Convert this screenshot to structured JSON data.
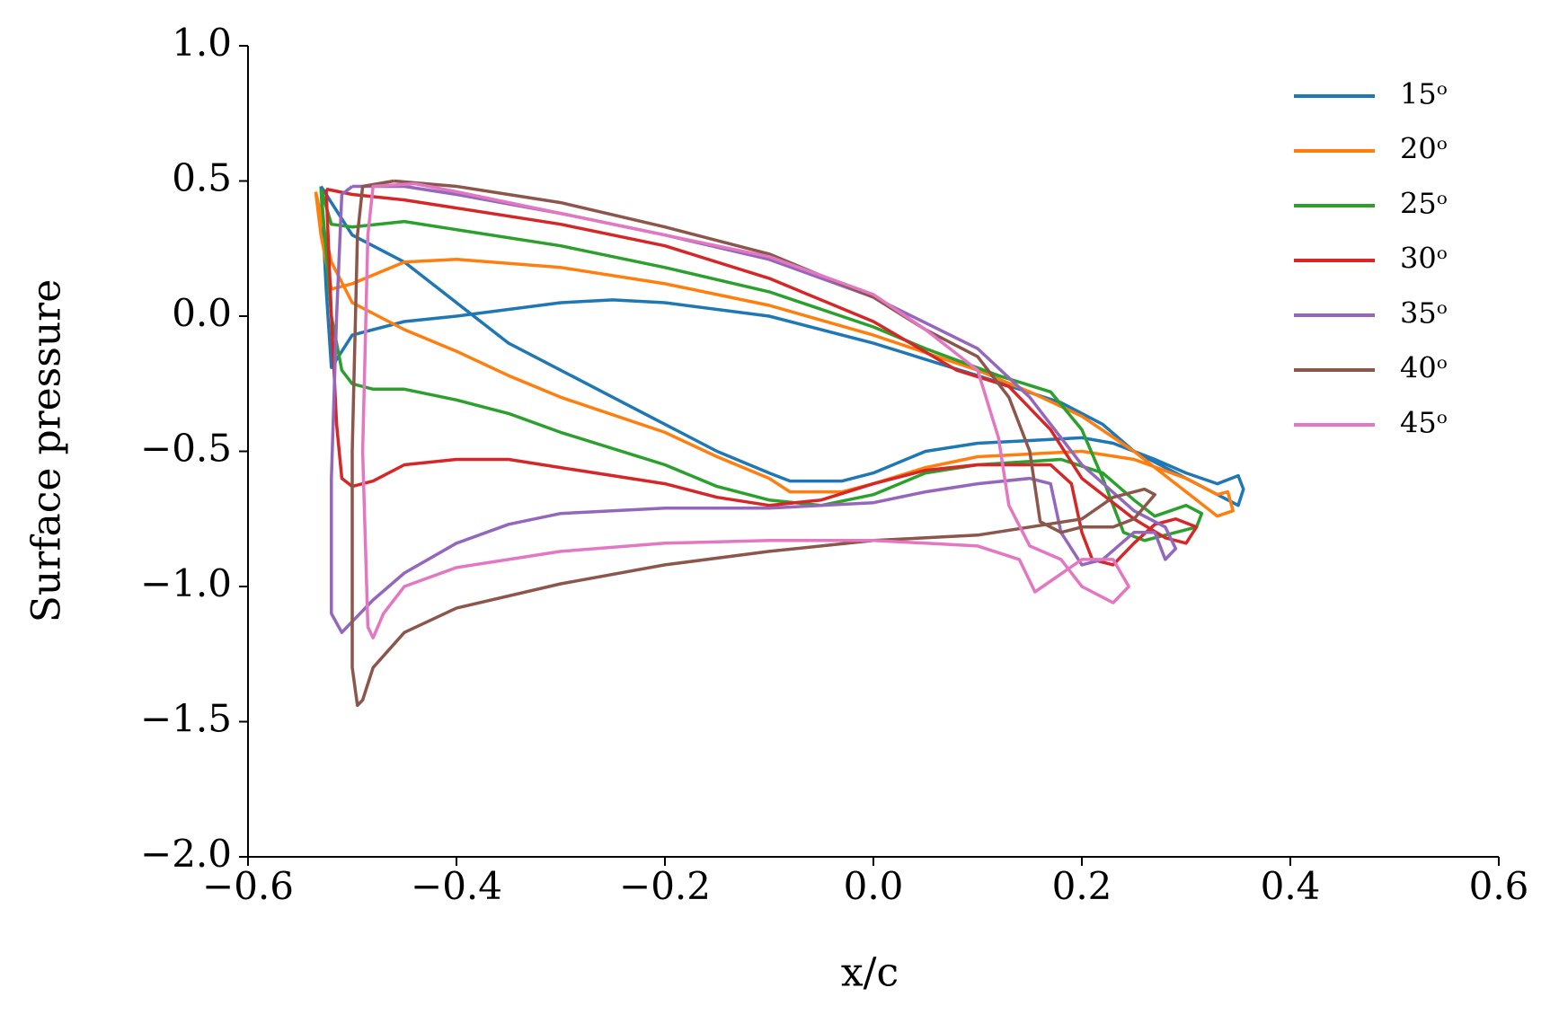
{
  "chart_data": {
    "type": "line",
    "xlabel": "x/c",
    "ylabel": "Surface pressure",
    "xlim": [
      -0.6,
      0.6
    ],
    "ylim": [
      -2.0,
      1.0
    ],
    "xticks": [
      {
        "value": -0.6,
        "label": "−0.6"
      },
      {
        "value": -0.4,
        "label": "−0.4"
      },
      {
        "value": -0.2,
        "label": "−0.2"
      },
      {
        "value": 0.0,
        "label": "0.0"
      },
      0.2,
      0.4,
      0.6
    ],
    "yticks": [
      {
        "value": -2.0,
        "label": "−2.0"
      },
      {
        "value": -1.5,
        "label": "−1.5"
      },
      {
        "value": -1.0,
        "label": "−1.0"
      },
      {
        "value": -0.5,
        "label": "−0.5"
      },
      {
        "value": 0.0,
        "label": "0.0"
      },
      0.5,
      {
        "value": 1.0,
        "label": "1.0"
      }
    ],
    "legend": "upper right",
    "series": [
      {
        "name": "15ᵒ",
        "color": "#1f77b4",
        "x": [
          -0.53,
          -0.5,
          -0.45,
          -0.4,
          -0.35,
          -0.3,
          -0.25,
          -0.2,
          -0.15,
          -0.1,
          -0.08,
          -0.03,
          0.0,
          0.05,
          0.1,
          0.15,
          0.2,
          0.23,
          0.27,
          0.3,
          0.33,
          0.35,
          0.355,
          0.35,
          0.33,
          0.3,
          0.25,
          0.22,
          0.18,
          0.1,
          0.0,
          -0.1,
          -0.2,
          -0.25,
          -0.3,
          -0.4,
          -0.45,
          -0.5,
          -0.52,
          -0.525,
          -0.53
        ],
        "values": [
          0.48,
          0.3,
          0.2,
          0.05,
          -0.1,
          -0.2,
          -0.3,
          -0.4,
          -0.5,
          -0.58,
          -0.61,
          -0.61,
          -0.58,
          -0.5,
          -0.47,
          -0.46,
          -0.45,
          -0.47,
          -0.53,
          -0.58,
          -0.62,
          -0.59,
          -0.64,
          -0.7,
          -0.66,
          -0.6,
          -0.5,
          -0.4,
          -0.32,
          -0.22,
          -0.1,
          0.0,
          0.05,
          0.06,
          0.05,
          0.0,
          -0.02,
          -0.07,
          -0.19,
          0.1,
          0.48
        ]
      },
      {
        "name": "20ᵒ",
        "color": "#ff7f0e",
        "x": [
          -0.535,
          -0.52,
          -0.5,
          -0.45,
          -0.4,
          -0.35,
          -0.3,
          -0.2,
          -0.15,
          -0.1,
          -0.08,
          -0.03,
          0.0,
          0.05,
          0.1,
          0.2,
          0.25,
          0.3,
          0.33,
          0.34,
          0.345,
          0.33,
          0.3,
          0.25,
          0.2,
          0.15,
          0.1,
          0.0,
          -0.1,
          -0.2,
          -0.3,
          -0.4,
          -0.45,
          -0.5,
          -0.52,
          -0.53,
          -0.535
        ],
        "values": [
          0.46,
          0.2,
          0.05,
          -0.05,
          -0.13,
          -0.22,
          -0.3,
          -0.43,
          -0.52,
          -0.6,
          -0.65,
          -0.65,
          -0.62,
          -0.56,
          -0.52,
          -0.5,
          -0.53,
          -0.6,
          -0.66,
          -0.65,
          -0.72,
          -0.74,
          -0.65,
          -0.5,
          -0.37,
          -0.28,
          -0.2,
          -0.07,
          0.04,
          0.12,
          0.18,
          0.21,
          0.2,
          0.12,
          0.1,
          0.3,
          0.46
        ]
      },
      {
        "name": "25ᵒ",
        "color": "#2ca02c",
        "x": [
          -0.53,
          -0.52,
          -0.51,
          -0.5,
          -0.48,
          -0.45,
          -0.4,
          -0.35,
          -0.3,
          -0.2,
          -0.15,
          -0.1,
          -0.05,
          0.0,
          0.05,
          0.1,
          0.18,
          0.22,
          0.25,
          0.27,
          0.3,
          0.315,
          0.31,
          0.29,
          0.26,
          0.24,
          0.22,
          0.2,
          0.17,
          0.12,
          0.05,
          0.0,
          -0.1,
          -0.2,
          -0.3,
          -0.4,
          -0.45,
          -0.5,
          -0.52,
          -0.53
        ],
        "values": [
          0.47,
          0.0,
          -0.2,
          -0.25,
          -0.27,
          -0.27,
          -0.31,
          -0.36,
          -0.43,
          -0.55,
          -0.63,
          -0.68,
          -0.7,
          -0.66,
          -0.58,
          -0.55,
          -0.53,
          -0.58,
          -0.68,
          -0.74,
          -0.7,
          -0.73,
          -0.78,
          -0.8,
          -0.83,
          -0.8,
          -0.6,
          -0.42,
          -0.28,
          -0.22,
          -0.12,
          -0.04,
          0.09,
          0.18,
          0.26,
          0.32,
          0.35,
          0.33,
          0.34,
          0.47
        ]
      },
      {
        "name": "30ᵒ",
        "color": "#d62728",
        "x": [
          -0.525,
          -0.52,
          -0.515,
          -0.51,
          -0.5,
          -0.48,
          -0.45,
          -0.4,
          -0.35,
          -0.3,
          -0.2,
          -0.15,
          -0.1,
          -0.05,
          0.0,
          0.05,
          0.1,
          0.17,
          0.19,
          0.2,
          0.21,
          0.23,
          0.25,
          0.27,
          0.29,
          0.31,
          0.3,
          0.28,
          0.25,
          0.2,
          0.17,
          0.13,
          0.08,
          0.0,
          -0.1,
          -0.2,
          -0.3,
          -0.4,
          -0.45,
          -0.5,
          -0.525
        ],
        "values": [
          0.47,
          0.0,
          -0.4,
          -0.6,
          -0.63,
          -0.61,
          -0.55,
          -0.53,
          -0.53,
          -0.56,
          -0.62,
          -0.67,
          -0.7,
          -0.68,
          -0.62,
          -0.57,
          -0.55,
          -0.55,
          -0.62,
          -0.8,
          -0.9,
          -0.92,
          -0.84,
          -0.77,
          -0.75,
          -0.78,
          -0.84,
          -0.82,
          -0.75,
          -0.6,
          -0.42,
          -0.26,
          -0.2,
          -0.02,
          0.14,
          0.26,
          0.34,
          0.4,
          0.43,
          0.45,
          0.47
        ]
      },
      {
        "name": "35ᵒ",
        "color": "#9467bd",
        "x": [
          -0.5,
          -0.51,
          -0.515,
          -0.52,
          -0.52,
          -0.51,
          -0.5,
          -0.48,
          -0.45,
          -0.4,
          -0.35,
          -0.3,
          -0.2,
          -0.1,
          0.0,
          0.05,
          0.1,
          0.15,
          0.17,
          0.18,
          0.2,
          0.22,
          0.25,
          0.27,
          0.28,
          0.29,
          0.28,
          0.25,
          0.2,
          0.15,
          0.1,
          0.0,
          -0.1,
          -0.2,
          -0.3,
          -0.4,
          -0.45,
          -0.5
        ],
        "values": [
          0.48,
          0.45,
          0.0,
          -0.6,
          -1.1,
          -1.17,
          -1.13,
          -1.05,
          -0.95,
          -0.84,
          -0.77,
          -0.73,
          -0.71,
          -0.71,
          -0.69,
          -0.65,
          -0.62,
          -0.6,
          -0.62,
          -0.8,
          -0.92,
          -0.9,
          -0.8,
          -0.8,
          -0.9,
          -0.86,
          -0.78,
          -0.72,
          -0.55,
          -0.3,
          -0.12,
          0.07,
          0.21,
          0.3,
          0.38,
          0.45,
          0.48,
          0.48
        ]
      },
      {
        "name": "40ᵒ",
        "color": "#8c564b",
        "x": [
          -0.46,
          -0.49,
          -0.495,
          -0.5,
          -0.5,
          -0.495,
          -0.49,
          -0.48,
          -0.45,
          -0.4,
          -0.3,
          -0.2,
          -0.1,
          0.0,
          0.1,
          0.15,
          0.2,
          0.23,
          0.26,
          0.27,
          0.25,
          0.23,
          0.2,
          0.18,
          0.16,
          0.15,
          0.13,
          0.1,
          0.05,
          0.0,
          -0.1,
          -0.2,
          -0.3,
          -0.4,
          -0.46
        ],
        "values": [
          0.5,
          0.48,
          0.3,
          -0.5,
          -1.3,
          -1.44,
          -1.42,
          -1.3,
          -1.17,
          -1.08,
          -0.99,
          -0.92,
          -0.87,
          -0.83,
          -0.81,
          -0.78,
          -0.75,
          -0.67,
          -0.64,
          -0.66,
          -0.75,
          -0.78,
          -0.78,
          -0.8,
          -0.76,
          -0.5,
          -0.3,
          -0.15,
          -0.05,
          0.07,
          0.23,
          0.33,
          0.42,
          0.48,
          0.5
        ]
      },
      {
        "name": "45ᵒ",
        "color": "#e377c2",
        "x": [
          -0.44,
          -0.48,
          -0.485,
          -0.49,
          -0.485,
          -0.48,
          -0.47,
          -0.45,
          -0.4,
          -0.3,
          -0.2,
          -0.1,
          0.0,
          0.05,
          0.1,
          0.14,
          0.155,
          0.17,
          0.2,
          0.23,
          0.245,
          0.23,
          0.2,
          0.18,
          0.15,
          0.13,
          0.12,
          0.1,
          0.05,
          0.0,
          -0.1,
          -0.2,
          -0.3,
          -0.4,
          -0.44
        ],
        "values": [
          0.49,
          0.48,
          0.3,
          -0.5,
          -1.15,
          -1.19,
          -1.1,
          -1.0,
          -0.93,
          -0.87,
          -0.84,
          -0.83,
          -0.83,
          -0.84,
          -0.85,
          -0.9,
          -1.02,
          -0.98,
          -0.9,
          -0.9,
          -1.0,
          -1.06,
          -1.0,
          -0.9,
          -0.85,
          -0.7,
          -0.45,
          -0.2,
          -0.05,
          0.08,
          0.22,
          0.3,
          0.38,
          0.46,
          0.49
        ]
      }
    ]
  }
}
